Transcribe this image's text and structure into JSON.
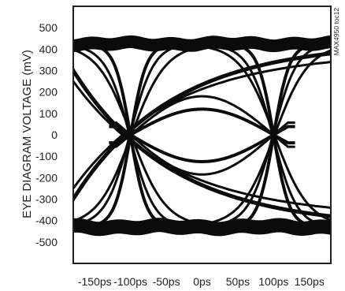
{
  "chart_data": {
    "type": "line",
    "figure_id": "MAX4950 toc12",
    "ylabel": "EYE DIAGRAM VOLTAGE (mV)",
    "xlabel": "",
    "y_ticks": [
      "500",
      "400",
      "300",
      "200",
      "100",
      "0",
      "-100",
      "-200",
      "-300",
      "-400",
      "-500"
    ],
    "y_tick_values": [
      500,
      400,
      300,
      200,
      100,
      0,
      -100,
      -200,
      -300,
      -400,
      -500
    ],
    "x_ticks": [
      "-150ps",
      "-100ps",
      "-50ps",
      "0ps",
      "50ps",
      "100ps",
      "150ps"
    ],
    "x_tick_values": [
      -150,
      -100,
      -50,
      0,
      50,
      100,
      150
    ],
    "xlim": [
      -180,
      180
    ],
    "ylim": [
      -600,
      600
    ],
    "grid": false,
    "eye": {
      "high_level_mv": 425,
      "low_level_mv": -430,
      "crossings_ps": [
        -100,
        100
      ],
      "crossing_level_mv": 0,
      "eye_opening_top_mv": 120,
      "eye_opening_bottom_mv": -125,
      "trace_color": "#0b0b0b"
    }
  }
}
